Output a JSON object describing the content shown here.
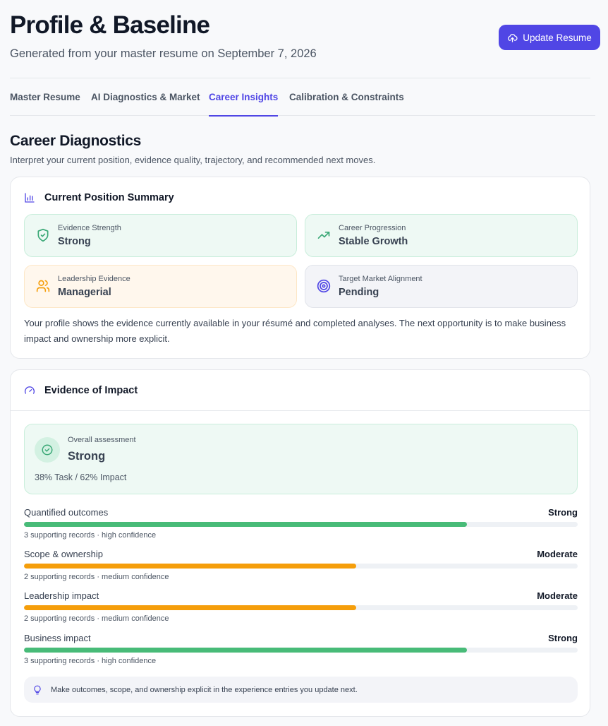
{
  "header": {
    "title": "Profile & Baseline",
    "subtitle": "Generated from your master resume on September 7, 2026",
    "update_button": "Update Resume"
  },
  "tabs": [
    {
      "label": "Master Resume",
      "active": false
    },
    {
      "label": "AI Diagnostics & Market",
      "active": false
    },
    {
      "label": "Career Insights",
      "active": true
    },
    {
      "label": "Calibration & Constraints",
      "active": false
    }
  ],
  "section": {
    "title": "Career Diagnostics",
    "subtitle": "Interpret your current position, evidence quality, trajectory, and recommended next moves."
  },
  "summary": {
    "title": "Current Position Summary",
    "tiles": [
      {
        "label": "Evidence Strength",
        "value": "Strong",
        "icon": "shield-check-icon",
        "tone": "green"
      },
      {
        "label": "Career Progression",
        "value": "Stable Growth",
        "icon": "trending-up-icon",
        "tone": "green"
      },
      {
        "label": "Leadership Evidence",
        "value": "Managerial",
        "icon": "users-icon",
        "tone": "orange"
      },
      {
        "label": "Target Market Alignment",
        "value": "Pending",
        "icon": "target-icon",
        "tone": "slate"
      }
    ],
    "text": "Your profile shows the evidence currently available in your résumé and completed analyses. The next opportunity is to make business impact and ownership more explicit."
  },
  "impact": {
    "title": "Evidence of Impact",
    "assessment_label": "Overall assessment",
    "assessment_value": "Strong",
    "ratio": "38% Task / 62% Impact",
    "metrics": [
      {
        "name": "Quantified outcomes",
        "level": "Strong",
        "fraction": 0.8,
        "note": "3 supporting records · high confidence"
      },
      {
        "name": "Scope & ownership",
        "level": "Moderate",
        "fraction": 0.6,
        "note": "2 supporting records · medium confidence"
      },
      {
        "name": "Leadership impact",
        "level": "Moderate",
        "fraction": 0.6,
        "note": "2 supporting records · medium confidence"
      },
      {
        "name": "Business impact",
        "level": "Strong",
        "fraction": 0.8,
        "note": "3 supporting records · high confidence"
      }
    ],
    "tip": "Make outcomes, scope, and ownership explicit in the experience entries you update next."
  },
  "colors": {
    "accent": "#5046e5",
    "strong": "#48bb78",
    "moderate": "#f59e0b",
    "green_icon": "#3aa876",
    "orange_icon": "#f59e0b"
  }
}
